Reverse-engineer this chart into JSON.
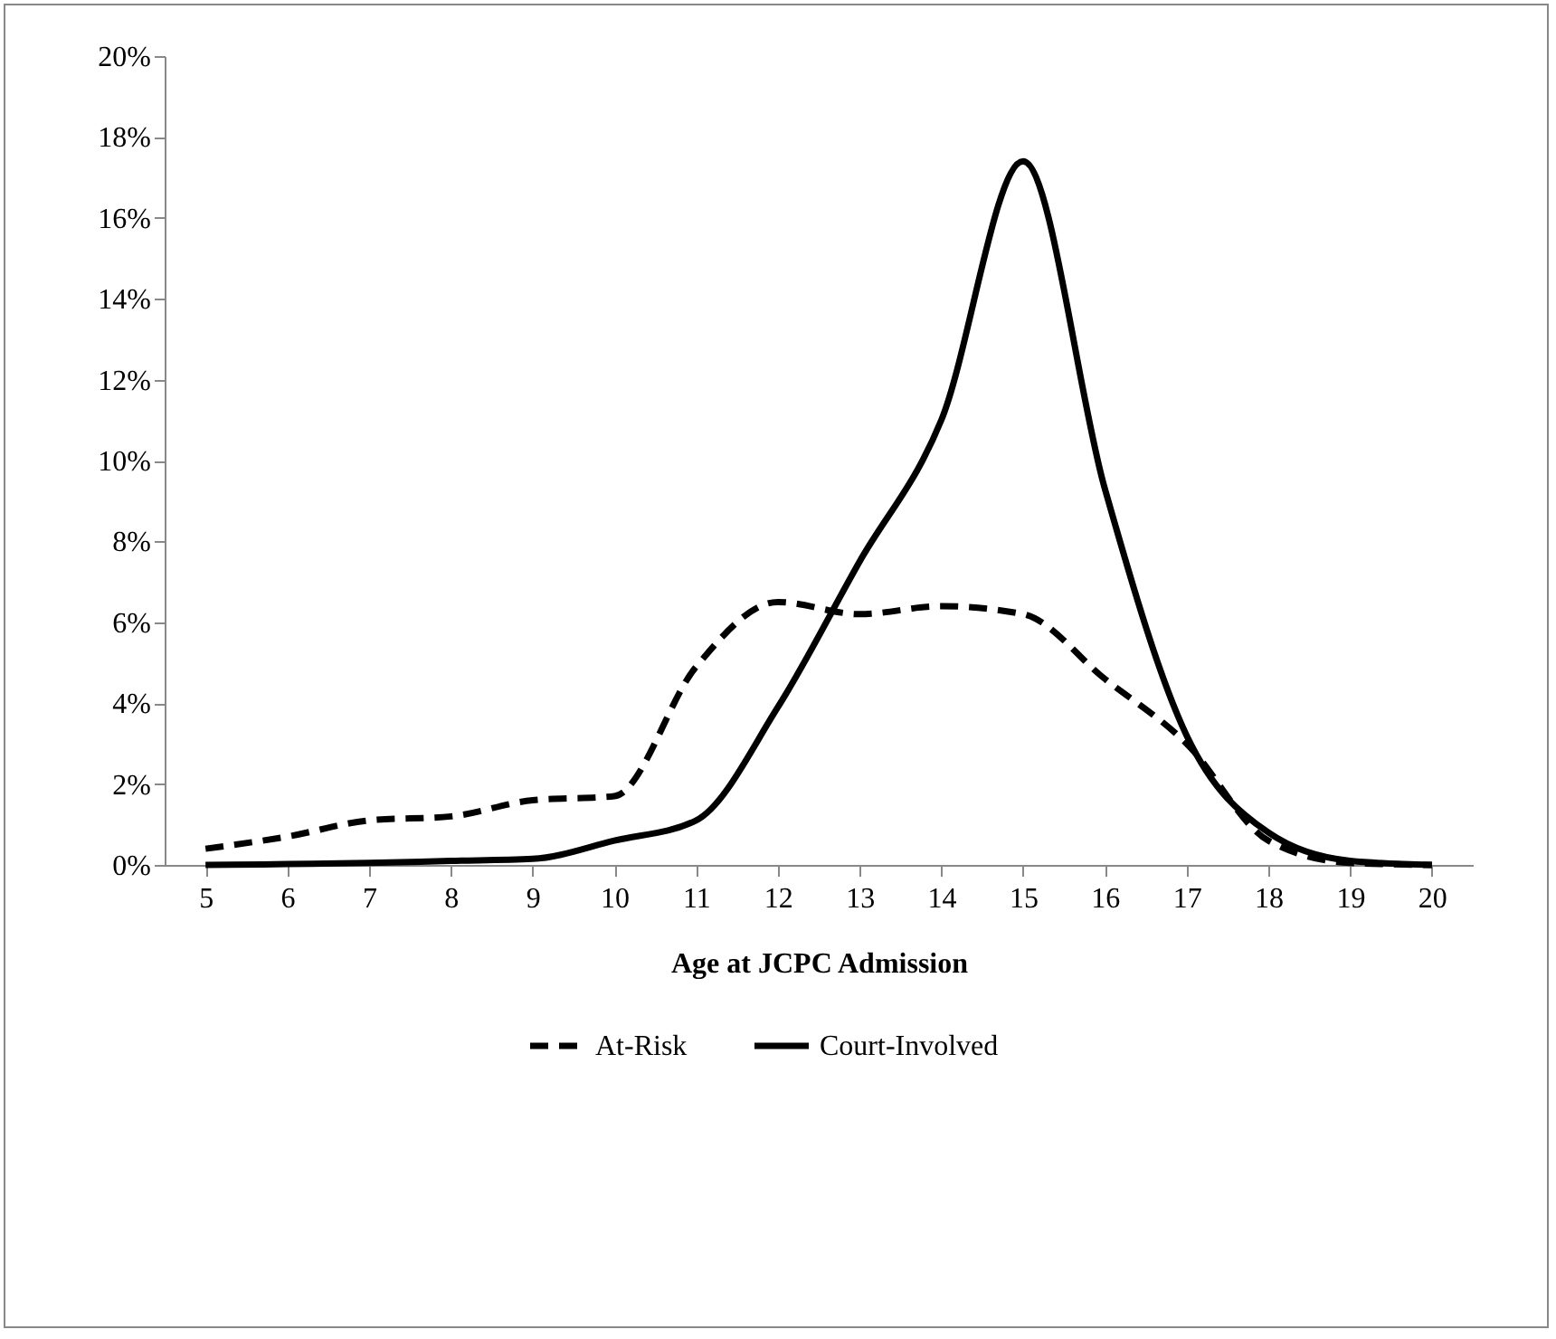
{
  "chart_data": {
    "type": "line",
    "xlabel": "Age at JCPC Admission",
    "categories": [
      "5",
      "6",
      "7",
      "8",
      "9",
      "10",
      "11",
      "12",
      "13",
      "14",
      "15",
      "16",
      "17",
      "18",
      "19",
      "20"
    ],
    "series": [
      {
        "name": "At-Risk",
        "color": "#000000",
        "line_style": "dashed",
        "values": [
          0.4,
          0.7,
          1.1,
          1.2,
          1.6,
          1.7,
          4.9,
          6.5,
          6.2,
          6.4,
          6.2,
          4.6,
          3.0,
          0.6,
          0.05,
          0.0
        ]
      },
      {
        "name": "Court-Involved",
        "color": "#000000",
        "line_style": "solid",
        "values": [
          0.0,
          0.02,
          0.05,
          0.1,
          0.15,
          0.6,
          1.1,
          3.9,
          7.5,
          11.0,
          17.4,
          9.3,
          3.2,
          0.8,
          0.1,
          0.0
        ]
      }
    ],
    "ylim": [
      0,
      20
    ],
    "yticks": [
      {
        "value": 0,
        "label": "0%"
      },
      {
        "value": 2,
        "label": "2%"
      },
      {
        "value": 4,
        "label": "4%"
      },
      {
        "value": 6,
        "label": "6%"
      },
      {
        "value": 8,
        "label": "8%"
      },
      {
        "value": 10,
        "label": "10%"
      },
      {
        "value": 12,
        "label": "12%"
      },
      {
        "value": 14,
        "label": "14%"
      },
      {
        "value": 16,
        "label": "16%"
      },
      {
        "value": 18,
        "label": "18%"
      },
      {
        "value": 20,
        "label": "20%"
      }
    ],
    "grid": false,
    "legend": "bottom",
    "marker": "none"
  }
}
